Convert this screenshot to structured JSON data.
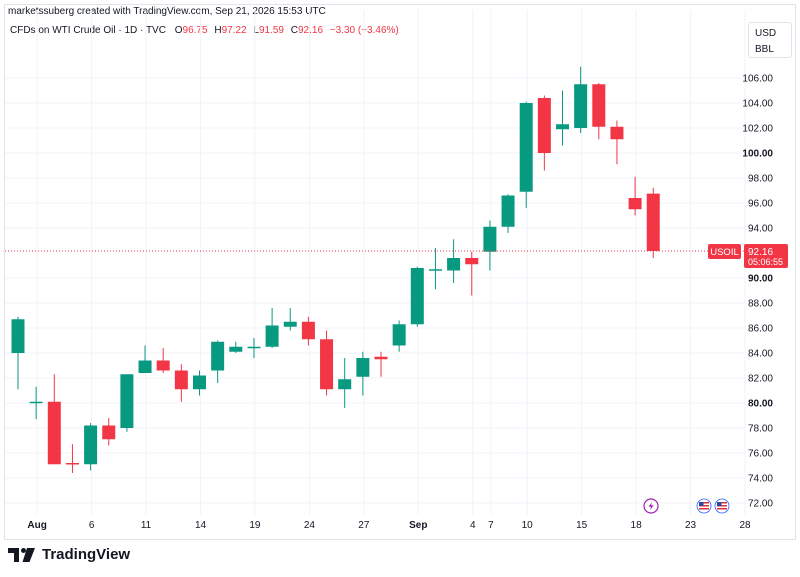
{
  "header": {
    "credit": "marketssuberg created with TradingView.com, Sep 21, 2026 15:53 UTC",
    "symbol_desc": "CFDs on WTI Crude Oil · 1D · TVC",
    "o_label": "O",
    "o_value": "96.75",
    "h_label": "H",
    "h_value": "97.22",
    "l_label": "L",
    "l_value": "91.59",
    "c_label": "C",
    "c_value": "92.16",
    "change": "−3.30 (−3.46%)"
  },
  "currency_box": {
    "line1": "USD",
    "line2": "BBL"
  },
  "price_tag": {
    "symbol": "USOIL",
    "price": "92.16",
    "countdown": "05:06:55"
  },
  "footer": {
    "brand": "TradingView"
  },
  "colors": {
    "up": "#089981",
    "down": "#f23645",
    "grid": "#f0f3fa",
    "text": "#131722"
  },
  "icons": [
    "tradingview-logo-icon",
    "lightning-event-icon",
    "us-flag-event-icon",
    "us-flag-event-icon"
  ],
  "chart_data": {
    "type": "candlestick",
    "ylim": [
      71,
      108
    ],
    "y_ticks": [
      "72.00",
      "74.00",
      "76.00",
      "78.00",
      "80.00",
      "82.00",
      "84.00",
      "86.00",
      "88.00",
      "90.00",
      "94.00",
      "96.00",
      "98.00",
      "100.00",
      "102.00",
      "104.00",
      "106.00"
    ],
    "bold_ticks": [
      "80.00",
      "90.00",
      "100.00"
    ],
    "x_ticks": [
      {
        "label": "Aug",
        "i": 1,
        "bold": true
      },
      {
        "label": "6",
        "i": 4,
        "bold": false
      },
      {
        "label": "11",
        "i": 7,
        "bold": false
      },
      {
        "label": "14",
        "i": 10,
        "bold": false
      },
      {
        "label": "19",
        "i": 13,
        "bold": false
      },
      {
        "label": "24",
        "i": 16,
        "bold": false
      },
      {
        "label": "27",
        "i": 19,
        "bold": false
      },
      {
        "label": "Sep",
        "i": 22,
        "bold": true
      },
      {
        "label": "4",
        "i": 25,
        "bold": false
      },
      {
        "label": "7",
        "i": 26,
        "bold": false
      },
      {
        "label": "10",
        "i": 28,
        "bold": false
      },
      {
        "label": "15",
        "i": 31,
        "bold": false
      },
      {
        "label": "18",
        "i": 34,
        "bold": false
      },
      {
        "label": "23",
        "i": 37,
        "bold": false
      },
      {
        "label": "28",
        "i": 40,
        "bold": false
      }
    ],
    "last_price": 92.16,
    "candles": [
      {
        "o": 84.0,
        "h": 86.9,
        "l": 81.1,
        "c": 86.7
      },
      {
        "o": 80.1,
        "h": 81.3,
        "l": 78.7,
        "c": 80.1
      },
      {
        "o": 80.1,
        "h": 82.3,
        "l": 75.1,
        "c": 75.1
      },
      {
        "o": 75.2,
        "h": 76.7,
        "l": 74.4,
        "c": 75.1
      },
      {
        "o": 75.1,
        "h": 78.4,
        "l": 74.6,
        "c": 78.2
      },
      {
        "o": 78.2,
        "h": 78.8,
        "l": 76.6,
        "c": 77.1
      },
      {
        "o": 78.0,
        "h": 82.3,
        "l": 77.7,
        "c": 82.3
      },
      {
        "o": 82.4,
        "h": 84.6,
        "l": 82.4,
        "c": 83.4
      },
      {
        "o": 83.4,
        "h": 84.4,
        "l": 82.4,
        "c": 82.6
      },
      {
        "o": 82.6,
        "h": 83.1,
        "l": 80.1,
        "c": 81.1
      },
      {
        "o": 81.1,
        "h": 82.6,
        "l": 80.6,
        "c": 82.2
      },
      {
        "o": 82.6,
        "h": 85.0,
        "l": 81.6,
        "c": 84.9
      },
      {
        "o": 84.1,
        "h": 84.9,
        "l": 84.0,
        "c": 84.5
      },
      {
        "o": 84.5,
        "h": 85.2,
        "l": 83.6,
        "c": 84.5
      },
      {
        "o": 84.5,
        "h": 87.6,
        "l": 84.4,
        "c": 86.2
      },
      {
        "o": 86.1,
        "h": 87.6,
        "l": 85.8,
        "c": 86.5
      },
      {
        "o": 86.5,
        "h": 86.9,
        "l": 84.6,
        "c": 85.1
      },
      {
        "o": 85.1,
        "h": 85.8,
        "l": 80.6,
        "c": 81.1
      },
      {
        "o": 81.1,
        "h": 83.6,
        "l": 79.6,
        "c": 81.9
      },
      {
        "o": 82.1,
        "h": 84.1,
        "l": 80.6,
        "c": 83.6
      },
      {
        "o": 83.7,
        "h": 84.1,
        "l": 82.1,
        "c": 83.5
      },
      {
        "o": 84.6,
        "h": 86.6,
        "l": 84.1,
        "c": 86.3
      },
      {
        "o": 86.3,
        "h": 90.9,
        "l": 86.1,
        "c": 90.8
      },
      {
        "o": 90.7,
        "h": 92.4,
        "l": 89.1,
        "c": 90.7
      },
      {
        "o": 90.6,
        "h": 93.1,
        "l": 89.6,
        "c": 91.6
      },
      {
        "o": 91.6,
        "h": 92.1,
        "l": 88.6,
        "c": 91.1
      },
      {
        "o": 92.1,
        "h": 94.6,
        "l": 90.6,
        "c": 94.1
      },
      {
        "o": 94.1,
        "h": 96.7,
        "l": 93.6,
        "c": 96.6
      },
      {
        "o": 96.9,
        "h": 104.1,
        "l": 95.6,
        "c": 104.0
      },
      {
        "o": 104.4,
        "h": 104.6,
        "l": 98.6,
        "c": 100.0
      },
      {
        "o": 101.9,
        "h": 105.0,
        "l": 100.6,
        "c": 102.3
      },
      {
        "o": 102.0,
        "h": 106.9,
        "l": 101.6,
        "c": 105.5
      },
      {
        "o": 105.5,
        "h": 105.6,
        "l": 101.1,
        "c": 102.1
      },
      {
        "o": 102.1,
        "h": 102.6,
        "l": 99.1,
        "c": 101.1
      },
      {
        "o": 96.4,
        "h": 98.1,
        "l": 95.0,
        "c": 95.5
      },
      {
        "o": 96.75,
        "h": 97.22,
        "l": 91.59,
        "c": 92.16
      }
    ]
  }
}
